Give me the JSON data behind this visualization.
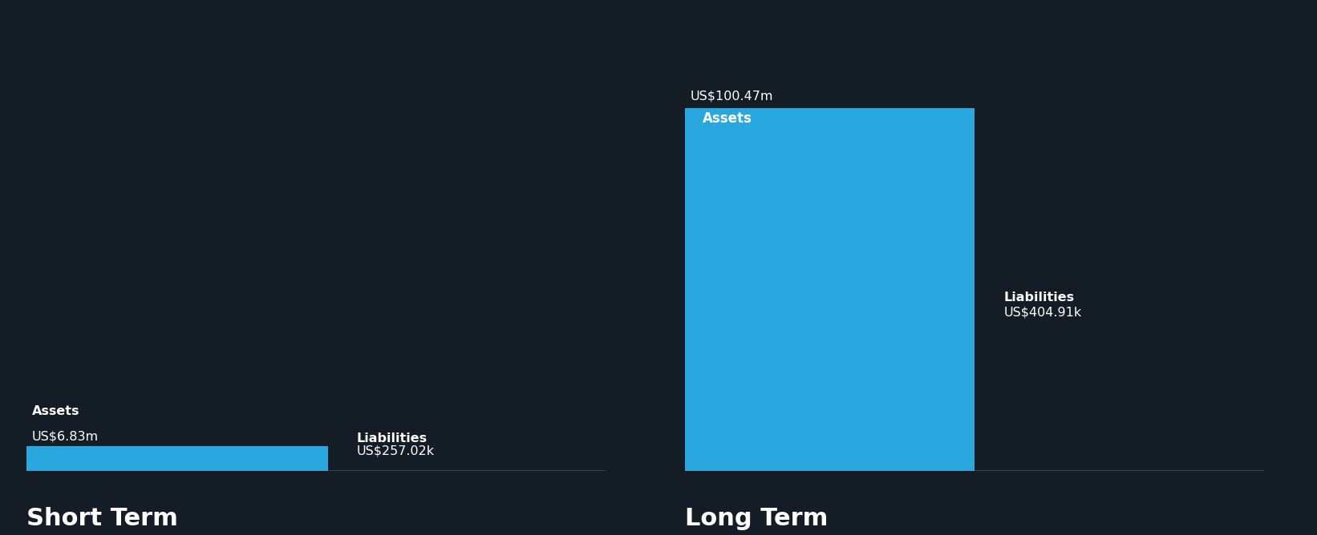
{
  "background_color": "#141c25",
  "bar_color": "#29a8e0",
  "text_color": "#ffffff",
  "short_term": {
    "assets_value": 6.83,
    "assets_label": "US$6.83m",
    "assets_sublabel": "Assets",
    "liabilities_value": 0.25702,
    "liabilities_label": "US$257.02k",
    "liabilities_sublabel": "Liabilities",
    "section_label": "Short Term"
  },
  "long_term": {
    "assets_value": 100.47,
    "assets_label": "US$100.47m",
    "assets_sublabel": "Assets",
    "liabilities_value": 0.40491,
    "liabilities_label": "US$404.91k",
    "liabilities_sublabel": "Liabilities",
    "section_label": "Long Term"
  },
  "y_max": 100.47,
  "section_label_fontsize": 22,
  "value_label_fontsize": 11.5,
  "sublabel_fontsize": 11.5,
  "bar_label_inside_fontsize": 12,
  "line_color": "#3a4a5a"
}
